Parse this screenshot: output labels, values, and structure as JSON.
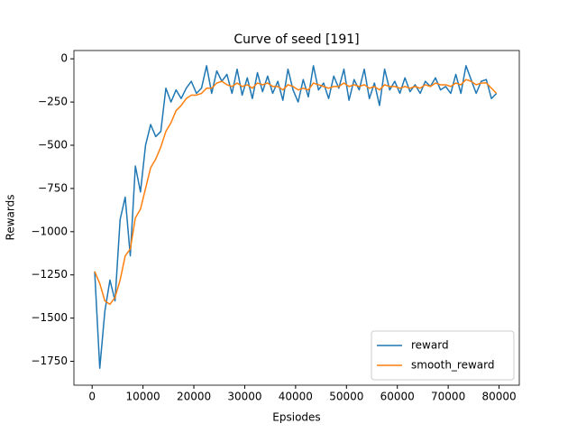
{
  "chart_data": {
    "type": "line",
    "title": "Curve of seed [191]",
    "x_label": "Epsiodes",
    "y_label": "Rewards",
    "x": [
      500,
      1500,
      2500,
      3500,
      4500,
      5500,
      6500,
      7500,
      8500,
      9500,
      10500,
      11500,
      12500,
      13500,
      14500,
      15500,
      16500,
      17500,
      18500,
      19500,
      20500,
      21500,
      22500,
      23500,
      24500,
      25500,
      26500,
      27500,
      28500,
      29500,
      30500,
      31500,
      32500,
      33500,
      34500,
      35500,
      36500,
      37500,
      38500,
      39500,
      40500,
      41500,
      42500,
      43500,
      44500,
      45500,
      46500,
      47500,
      48500,
      49500,
      50500,
      51500,
      52500,
      53500,
      54500,
      55500,
      56500,
      57500,
      58500,
      59500,
      60500,
      61500,
      62500,
      63500,
      64500,
      65500,
      66500,
      67500,
      68500,
      69500,
      70500,
      71500,
      72500,
      73500,
      74500,
      75500,
      76500,
      77500,
      78500,
      79500
    ],
    "series": [
      {
        "name": "reward",
        "color": "#1f77b4",
        "values": [
          -1230,
          -1790,
          -1460,
          -1280,
          -1400,
          -930,
          -800,
          -1140,
          -620,
          -770,
          -500,
          -380,
          -450,
          -420,
          -170,
          -250,
          -180,
          -230,
          -170,
          -130,
          -200,
          -170,
          -40,
          -200,
          -70,
          -130,
          -90,
          -200,
          -60,
          -210,
          -110,
          -230,
          -80,
          -190,
          -100,
          -200,
          -130,
          -240,
          -60,
          -180,
          -250,
          -120,
          -220,
          -40,
          -180,
          -140,
          -230,
          -100,
          -170,
          -60,
          -240,
          -120,
          -180,
          -60,
          -230,
          -140,
          -270,
          -60,
          -180,
          -130,
          -200,
          -110,
          -190,
          -150,
          -200,
          -130,
          -160,
          -110,
          -180,
          -160,
          -200,
          -90,
          -200,
          -40,
          -120,
          -200,
          -130,
          -120,
          -230,
          -200
        ]
      },
      {
        "name": "smooth_reward",
        "color": "#ff7f0e",
        "values": [
          -1230,
          -1300,
          -1400,
          -1420,
          -1380,
          -1280,
          -1140,
          -1100,
          -920,
          -870,
          -750,
          -630,
          -580,
          -510,
          -420,
          -370,
          -300,
          -270,
          -230,
          -210,
          -210,
          -200,
          -170,
          -170,
          -140,
          -130,
          -150,
          -160,
          -140,
          -160,
          -150,
          -170,
          -140,
          -150,
          -140,
          -160,
          -160,
          -180,
          -150,
          -160,
          -180,
          -170,
          -180,
          -140,
          -150,
          -160,
          -170,
          -160,
          -160,
          -140,
          -160,
          -150,
          -160,
          -150,
          -170,
          -160,
          -180,
          -150,
          -160,
          -160,
          -170,
          -160,
          -170,
          -160,
          -170,
          -150,
          -160,
          -140,
          -150,
          -150,
          -160,
          -140,
          -150,
          -120,
          -130,
          -150,
          -140,
          -140,
          -170,
          -200
        ]
      }
    ],
    "xlim": [
      -3580,
      83980
    ],
    "ylim": [
      -1888,
      48
    ],
    "xticks": [
      0,
      10000,
      20000,
      30000,
      40000,
      50000,
      60000,
      70000,
      80000
    ],
    "yticks": [
      0,
      {
        "value": -250,
        "label": "−250"
      },
      {
        "value": -500,
        "label": "−500"
      },
      {
        "value": -750,
        "label": "−750"
      },
      {
        "value": -1000,
        "label": "−1000"
      },
      {
        "value": -1250,
        "label": "−1250"
      },
      {
        "value": -1500,
        "label": "−1500"
      },
      {
        "value": -1750,
        "label": "−1750"
      }
    ],
    "legend": "lower right"
  }
}
